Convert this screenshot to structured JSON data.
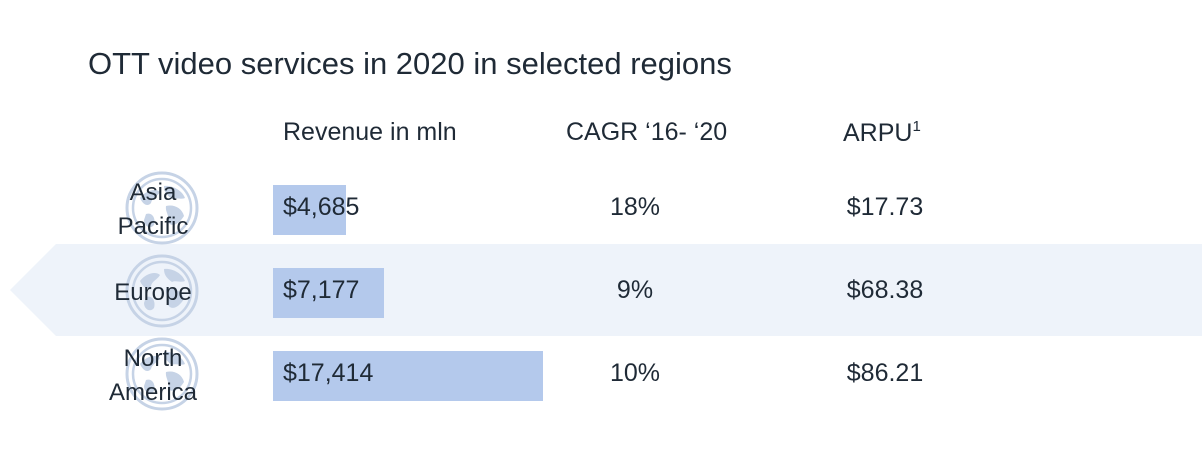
{
  "title": "OTT video services in 2020 in selected regions",
  "headers": {
    "revenue": "Revenue in mln",
    "cagr": "CAGR ‘16- ‘20",
    "arpu": "ARPU",
    "arpu_footnote": "1"
  },
  "colors": {
    "bar": "#b4c9ec",
    "band": "#eef3fa",
    "icon": "#c6d3e6",
    "text": "#1f2a36"
  },
  "icon": "globe-icon",
  "chart_data": {
    "type": "table",
    "title": "OTT video services in 2020 in selected regions",
    "columns": [
      "Revenue in mln",
      "CAGR ‘16- ‘20",
      "ARPU"
    ],
    "rows": [
      {
        "region": [
          "Asia",
          "Pacific"
        ],
        "revenue": 4685,
        "revenue_label": "$4,685",
        "cagr": "18%",
        "arpu": "$17.73"
      },
      {
        "region": [
          "Europe"
        ],
        "revenue": 7177,
        "revenue_label": "$7,177",
        "cagr": "9%",
        "arpu": "$68.38"
      },
      {
        "region": [
          "North",
          "America"
        ],
        "revenue": 17414,
        "revenue_label": "$17,414",
        "cagr": "10%",
        "arpu": "$86.21"
      }
    ]
  }
}
